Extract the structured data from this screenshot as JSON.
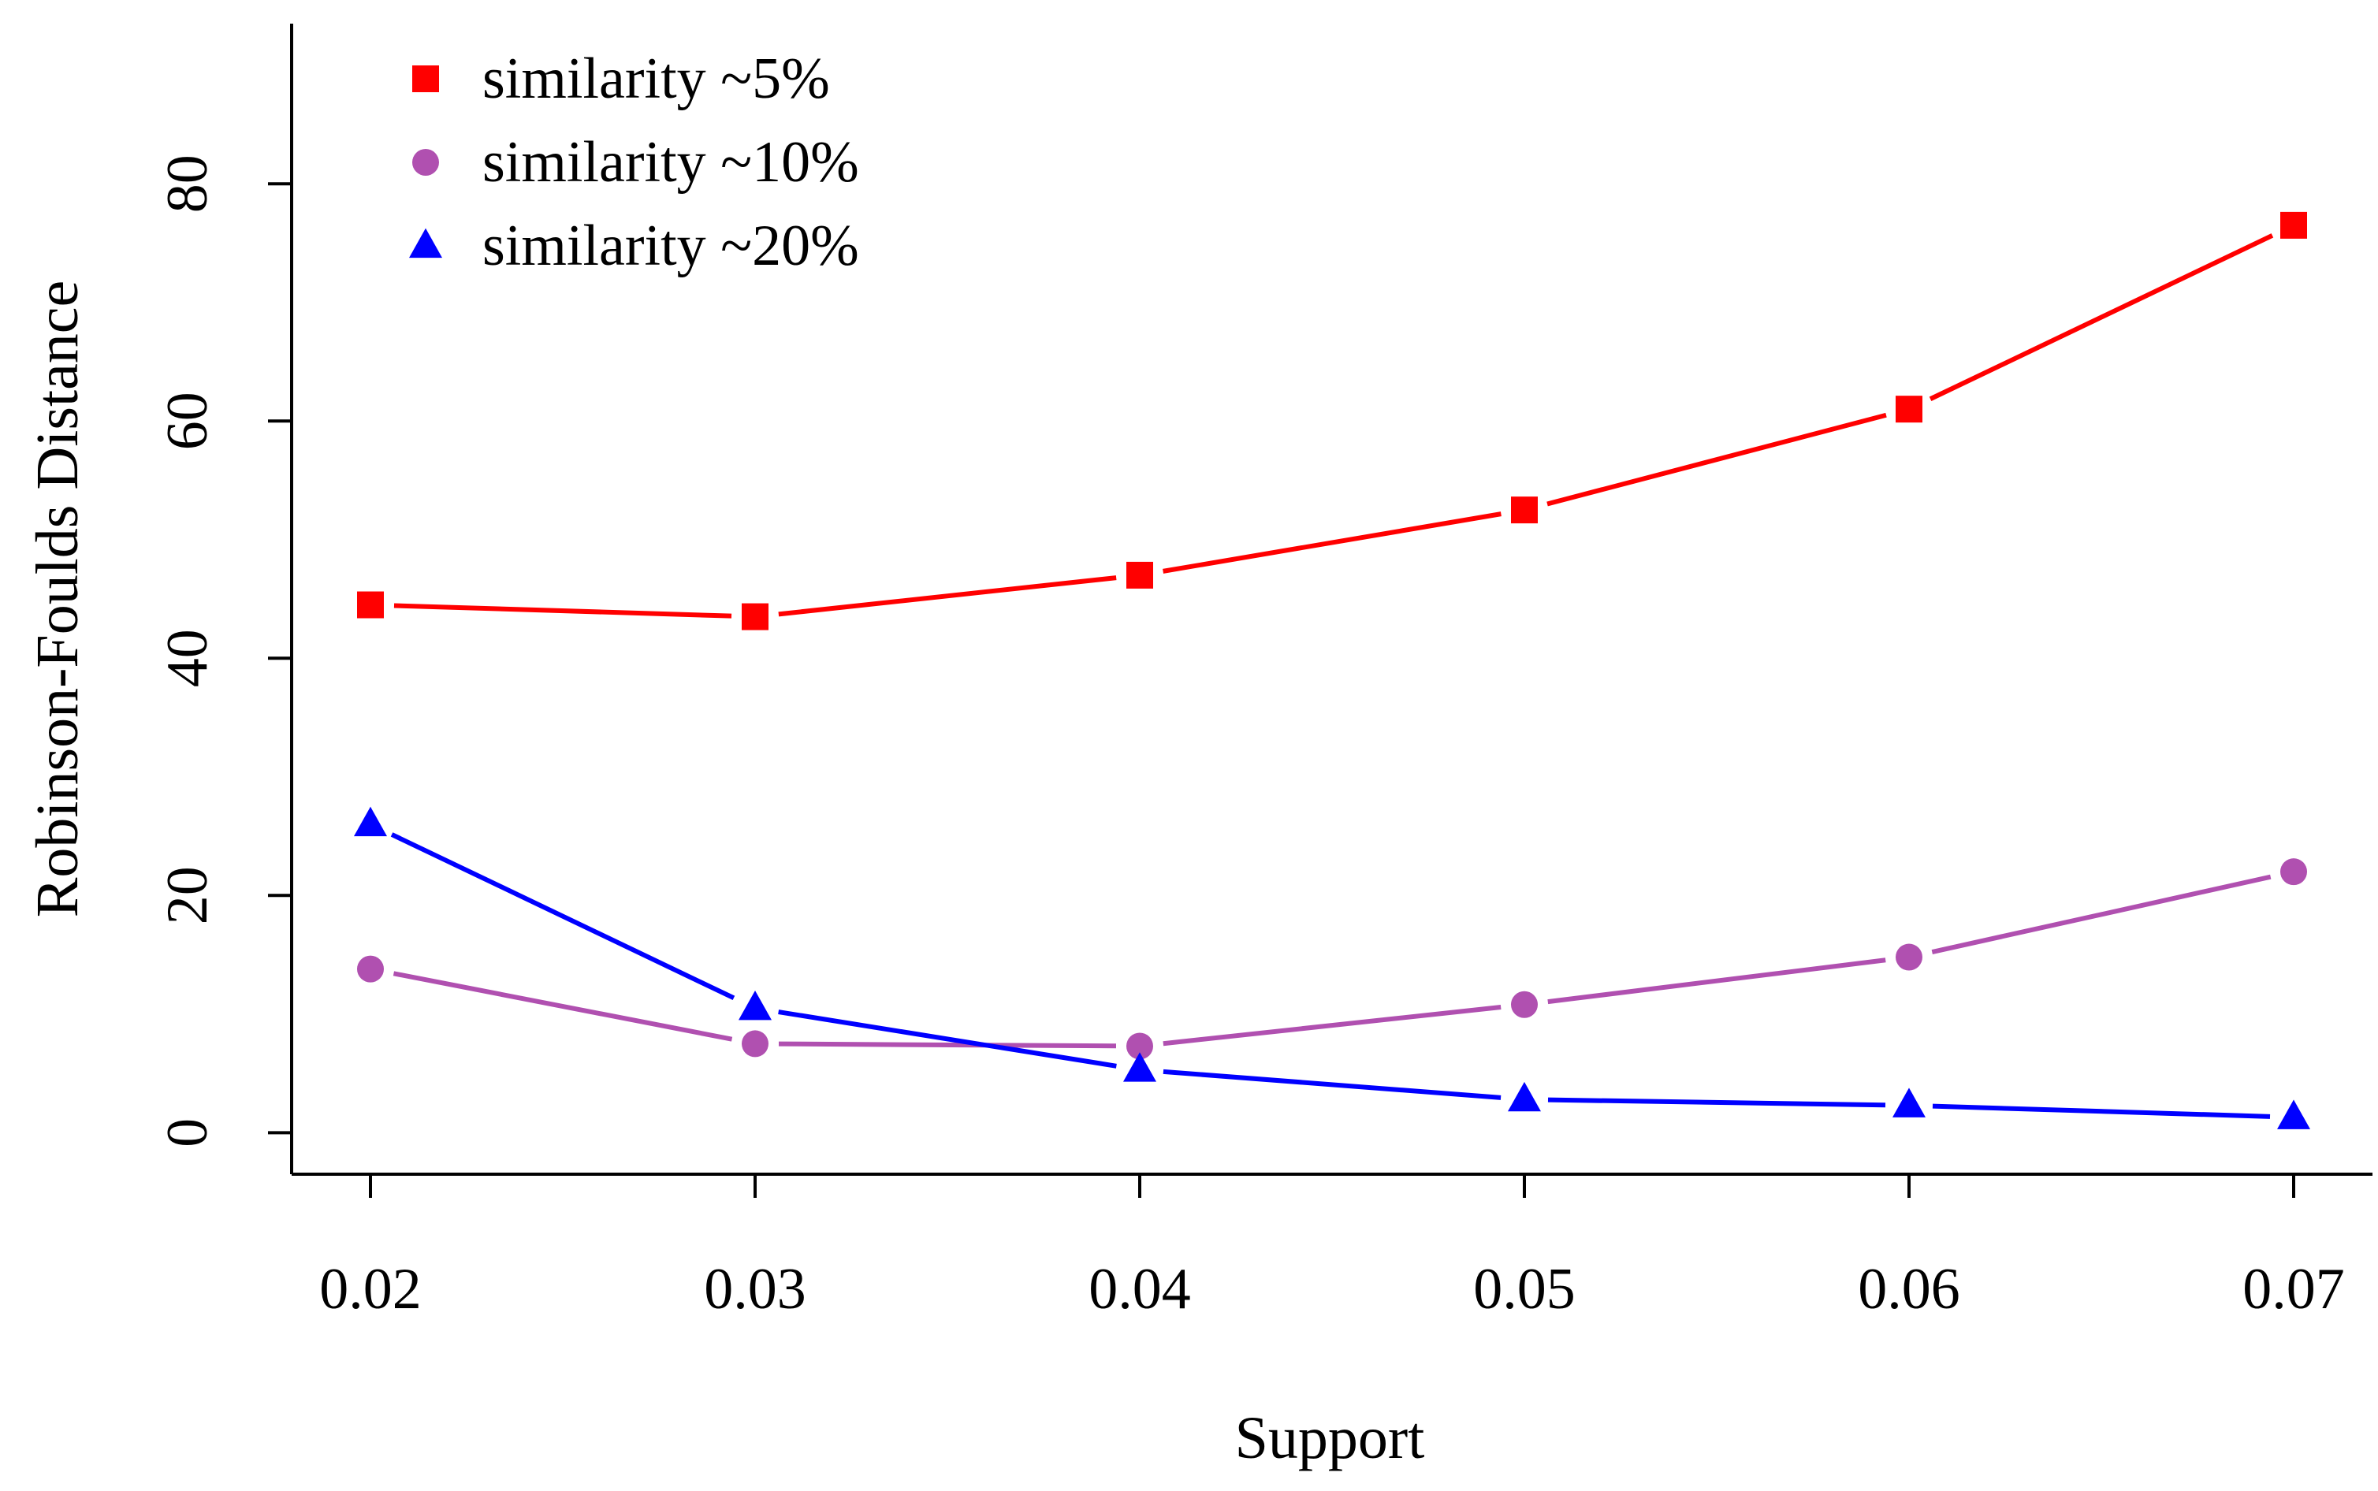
{
  "chart_data": {
    "type": "line",
    "title": "",
    "xlabel": "Support",
    "ylabel": "Robinson-Foulds Distance",
    "x": [
      0.02,
      0.03,
      0.04,
      0.05,
      0.06,
      0.07
    ],
    "x_tick_labels": [
      "0.02",
      "0.03",
      "0.04",
      "0.05",
      "0.06",
      "0.07"
    ],
    "y_ticks": [
      0,
      20,
      40,
      60,
      80
    ],
    "y_tick_labels": [
      "0",
      "20",
      "40",
      "60",
      "80"
    ],
    "xlim": [
      0.018,
      0.072
    ],
    "ylim": [
      -3.5,
      93.5
    ],
    "grid": false,
    "legend_position": "top-left",
    "series": [
      {
        "name": "similarity ~5%",
        "color": "#ff0000",
        "marker": "square",
        "values": [
          44.5,
          43.5,
          47,
          52.5,
          61,
          76.5
        ]
      },
      {
        "name": "similarity ~10%",
        "color": "#b050b0",
        "marker": "circle",
        "values": [
          13.8,
          7.5,
          7.3,
          10.8,
          14.8,
          22
        ]
      },
      {
        "name": "similarity ~20%",
        "color": "#0000ff",
        "marker": "triangle",
        "values": [
          26,
          10.5,
          5.3,
          2.8,
          2.3,
          1.3
        ]
      }
    ]
  }
}
